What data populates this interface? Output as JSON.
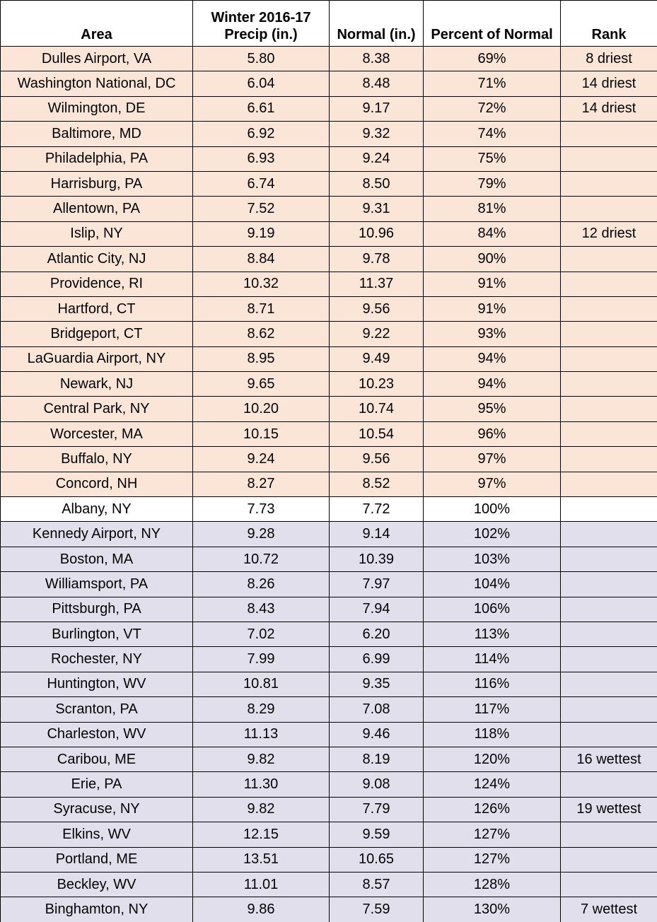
{
  "table": {
    "header": [
      "Area",
      "Winter 2016-17\nPrecip (in.)",
      "Normal (in.)",
      "Percent of Normal",
      "Rank"
    ],
    "sections": [
      {
        "color": "#fbe5d6",
        "rows": [
          [
            "Dulles Airport, VA",
            "5.80",
            "8.38",
            "69%",
            "8 driest"
          ],
          [
            "Washington National, DC",
            "6.04",
            "8.48",
            "71%",
            "14 driest"
          ],
          [
            "Wilmington, DE",
            "6.61",
            "9.17",
            "72%",
            "14 driest"
          ],
          [
            "Baltimore, MD",
            "6.92",
            "9.32",
            "74%",
            null
          ],
          [
            "Philadelphia, PA",
            "6.93",
            "9.24",
            "75%",
            null
          ],
          [
            "Harrisburg, PA",
            "6.74",
            "8.50",
            "79%",
            null
          ],
          [
            "Allentown, PA",
            "7.52",
            "9.31",
            "81%",
            null
          ],
          [
            "Islip, NY",
            "9.19",
            "10.96",
            "84%",
            "12 driest"
          ],
          [
            "Atlantic City, NJ",
            "8.84",
            "9.78",
            "90%",
            null
          ],
          [
            "Providence, RI",
            "10.32",
            "11.37",
            "91%",
            null
          ],
          [
            "Hartford, CT",
            "8.71",
            "9.56",
            "91%",
            null
          ],
          [
            "Bridgeport, CT",
            "8.62",
            "9.22",
            "93%",
            null
          ],
          [
            "LaGuardia Airport, NY",
            "8.95",
            "9.49",
            "94%",
            null
          ],
          [
            "Newark, NJ",
            "9.65",
            "10.23",
            "94%",
            null
          ],
          [
            "Central Park, NY",
            "10.20",
            "10.74",
            "95%",
            null
          ],
          [
            "Worcester, MA",
            "10.15",
            "10.54",
            "96%",
            null
          ],
          [
            "Buffalo, NY",
            "9.24",
            "9.56",
            "97%",
            null
          ],
          [
            "Concord, NH",
            "8.27",
            "8.52",
            "97%",
            null
          ]
        ]
      },
      {
        "color": "#ffffff",
        "rows": [
          [
            "Albany, NY",
            "7.73",
            "7.72",
            "100%",
            null
          ]
        ]
      },
      {
        "color": "#e2dfec",
        "rows": [
          [
            "Kennedy Airport, NY",
            "9.28",
            "9.14",
            "102%",
            null
          ],
          [
            "Boston, MA",
            "10.72",
            "10.39",
            "103%",
            null
          ],
          [
            "Williamsport, PA",
            "8.26",
            "7.97",
            "104%",
            null
          ],
          [
            "Pittsburgh, PA",
            "8.43",
            "7.94",
            "106%",
            null
          ],
          [
            "Burlington, VT",
            "7.02",
            "6.20",
            "113%",
            null
          ],
          [
            "Rochester, NY",
            "7.99",
            "6.99",
            "114%",
            null
          ],
          [
            "Huntington, WV",
            "10.81",
            "9.35",
            "116%",
            null
          ],
          [
            "Scranton, PA",
            "8.29",
            "7.08",
            "117%",
            null
          ],
          [
            "Charleston, WV",
            "11.13",
            "9.46",
            "118%",
            null
          ],
          [
            "Caribou, ME",
            "9.82",
            "8.19",
            "120%",
            "16 wettest"
          ],
          [
            "Erie, PA",
            "11.30",
            "9.08",
            "124%",
            null
          ],
          [
            "Syracuse, NY",
            "9.82",
            "7.79",
            "126%",
            "19 wettest"
          ],
          [
            "Elkins, WV",
            "12.15",
            "9.59",
            "127%",
            null
          ],
          [
            "Portland, ME",
            "13.51",
            "10.65",
            "127%",
            null
          ],
          [
            "Beckley, WV",
            "11.01",
            "8.57",
            "128%",
            null
          ],
          [
            "Binghamton, NY",
            "9.86",
            "7.59",
            "130%",
            "7 wettest"
          ]
        ]
      }
    ]
  }
}
